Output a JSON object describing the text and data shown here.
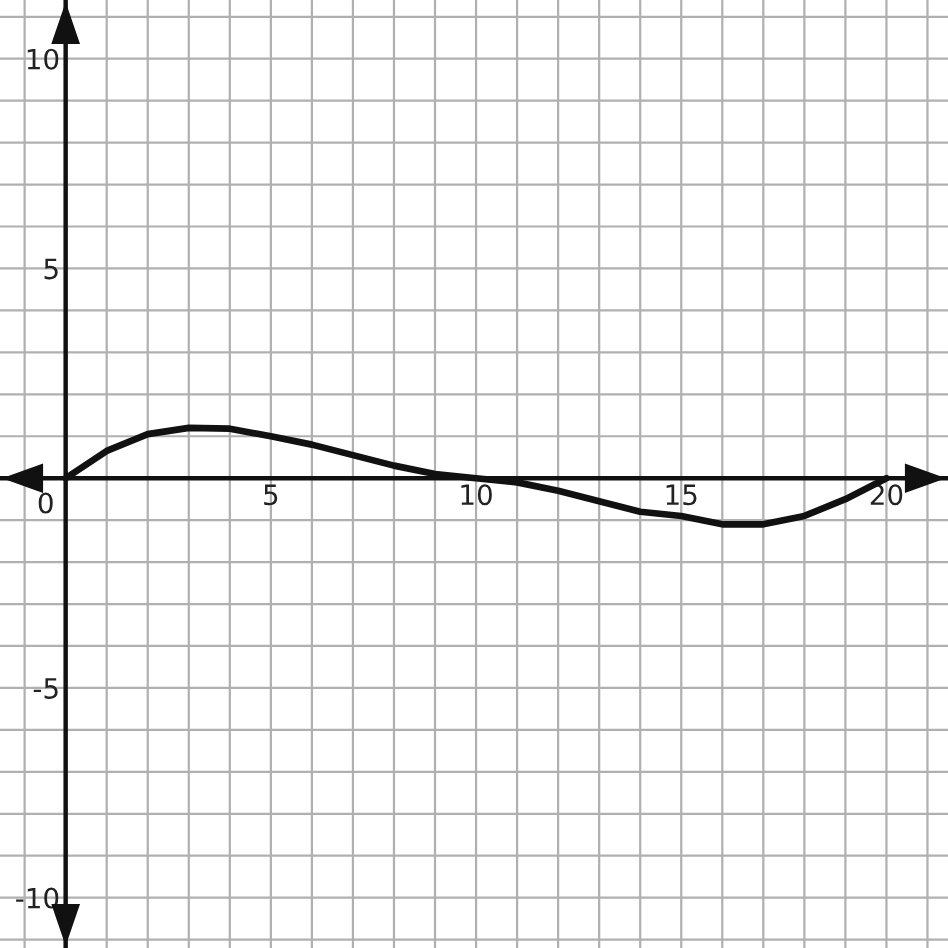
{
  "chart_data": {
    "type": "line",
    "x": [
      0,
      1,
      2,
      3,
      4,
      5,
      6,
      7,
      8,
      9,
      10,
      11,
      12,
      13,
      14,
      15,
      16,
      17,
      18,
      19,
      20
    ],
    "series": [
      {
        "color": "#111111",
        "values": [
          0,
          0.65,
          1.05,
          1.2,
          1.18,
          1.0,
          0.8,
          0.55,
          0.3,
          0.1,
          0,
          -0.1,
          -0.3,
          -0.55,
          -0.8,
          -0.9,
          -1.1,
          -1.1,
          -0.9,
          -0.5,
          0
        ]
      }
    ],
    "xlim": [
      -1.6,
      21.5
    ],
    "ylim": [
      -11.2,
      11.4
    ],
    "xticks": [
      {
        "value": -1,
        "label": null
      },
      {
        "value": 0,
        "label": "0"
      },
      {
        "value": 1,
        "label": null
      },
      {
        "value": 2,
        "label": null
      },
      {
        "value": 3,
        "label": null
      },
      {
        "value": 4,
        "label": null
      },
      5,
      {
        "value": 6,
        "label": null
      },
      {
        "value": 7,
        "label": null
      },
      {
        "value": 8,
        "label": null
      },
      {
        "value": 9,
        "label": null
      },
      10,
      {
        "value": 11,
        "label": null
      },
      {
        "value": 12,
        "label": null
      },
      {
        "value": 13,
        "label": null
      },
      {
        "value": 14,
        "label": null
      },
      15,
      {
        "value": 16,
        "label": null
      },
      {
        "value": 17,
        "label": null
      },
      {
        "value": 18,
        "label": null
      },
      {
        "value": 19,
        "label": null
      },
      20,
      {
        "value": 21,
        "label": null
      }
    ],
    "yticks": [
      {
        "value": -11,
        "label": null
      },
      -10,
      {
        "value": -9,
        "label": null
      },
      {
        "value": -8,
        "label": null
      },
      {
        "value": -7,
        "label": null
      },
      {
        "value": -6,
        "label": null
      },
      -5,
      {
        "value": -4,
        "label": null
      },
      {
        "value": -3,
        "label": null
      },
      {
        "value": -2,
        "label": null
      },
      {
        "value": -1,
        "label": null
      },
      {
        "value": 0,
        "label": null
      },
      {
        "value": 1,
        "label": null
      },
      {
        "value": 2,
        "label": null
      },
      {
        "value": 3,
        "label": null
      },
      {
        "value": 4,
        "label": null
      },
      5,
      {
        "value": 6,
        "label": null
      },
      {
        "value": 7,
        "label": null
      },
      {
        "value": 8,
        "label": null
      },
      {
        "value": 9,
        "label": null
      },
      10,
      {
        "value": 11,
        "label": null
      }
    ],
    "grid": true,
    "marker": "none",
    "line_style": "solid"
  }
}
